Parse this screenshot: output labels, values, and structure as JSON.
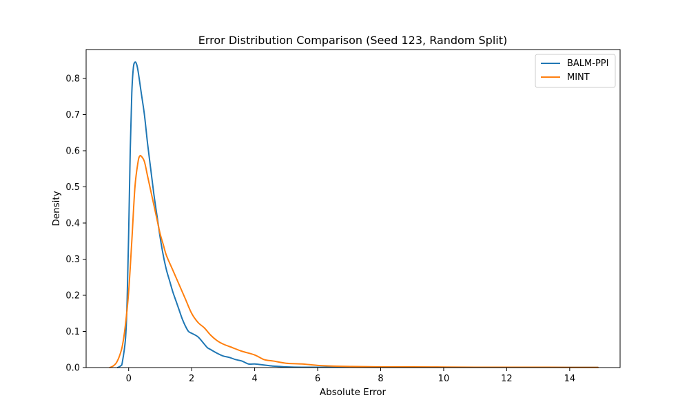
{
  "chart_data": {
    "type": "line",
    "title": "Error Distribution Comparison (Seed 123, Random Split)",
    "xlabel": "Absolute Error",
    "ylabel": "Density",
    "xlim": [
      -1.35,
      15.6
    ],
    "ylim": [
      0,
      0.88
    ],
    "xticks": [
      0,
      2,
      4,
      6,
      8,
      10,
      12,
      14
    ],
    "yticks": [
      0.0,
      0.1,
      0.2,
      0.3,
      0.4,
      0.5,
      0.6,
      0.7,
      0.8
    ],
    "xtick_labels": [
      "0",
      "2",
      "4",
      "6",
      "8",
      "10",
      "12",
      "14"
    ],
    "ytick_labels": [
      "0.0",
      "0.1",
      "0.2",
      "0.3",
      "0.4",
      "0.5",
      "0.6",
      "0.7",
      "0.8"
    ],
    "grid": false,
    "legend_position": "top-right",
    "series": [
      {
        "name": "BALM-PPI",
        "color": "#1f77b4",
        "x": [
          -0.35,
          -0.25,
          -0.2,
          -0.1,
          -0.05,
          0.0,
          0.05,
          0.1,
          0.15,
          0.2,
          0.25,
          0.3,
          0.4,
          0.5,
          0.6,
          0.7,
          0.8,
          0.9,
          1.0,
          1.1,
          1.2,
          1.3,
          1.4,
          1.5,
          1.6,
          1.7,
          1.8,
          1.9,
          2.0,
          2.2,
          2.4,
          2.5,
          2.6,
          2.8,
          3.0,
          3.2,
          3.4,
          3.6,
          3.8,
          4.0,
          4.2,
          4.4,
          4.6,
          4.8,
          5.0,
          5.5,
          6.0,
          7.0,
          8.0,
          9.0,
          10.0,
          11.0,
          12.0,
          13.0,
          14.0,
          14.9
        ],
        "y": [
          0.0,
          0.005,
          0.015,
          0.08,
          0.18,
          0.37,
          0.6,
          0.76,
          0.83,
          0.845,
          0.84,
          0.82,
          0.76,
          0.7,
          0.62,
          0.55,
          0.48,
          0.42,
          0.36,
          0.31,
          0.27,
          0.24,
          0.21,
          0.185,
          0.16,
          0.135,
          0.115,
          0.1,
          0.095,
          0.085,
          0.065,
          0.055,
          0.05,
          0.04,
          0.032,
          0.028,
          0.022,
          0.018,
          0.01,
          0.01,
          0.008,
          0.006,
          0.004,
          0.003,
          0.002,
          0.001,
          0.001,
          0.001,
          0.0005,
          0.0005,
          0.0005,
          0.0005,
          0.0005,
          0.0005,
          0.0005,
          0.0005
        ]
      },
      {
        "name": "MINT",
        "color": "#ff7f0e",
        "x": [
          -0.6,
          -0.5,
          -0.4,
          -0.3,
          -0.2,
          -0.1,
          0.0,
          0.1,
          0.2,
          0.3,
          0.35,
          0.4,
          0.5,
          0.6,
          0.7,
          0.8,
          0.9,
          1.0,
          1.1,
          1.2,
          1.4,
          1.6,
          1.8,
          2.0,
          2.2,
          2.4,
          2.6,
          2.8,
          3.0,
          3.3,
          3.6,
          4.0,
          4.3,
          4.6,
          5.0,
          5.5,
          6.0,
          6.5,
          7.0,
          8.0,
          9.0,
          10.0,
          11.0,
          12.0,
          13.0,
          14.0,
          14.9
        ],
        "y": [
          0.0,
          0.004,
          0.012,
          0.03,
          0.06,
          0.12,
          0.21,
          0.35,
          0.5,
          0.57,
          0.585,
          0.585,
          0.57,
          0.53,
          0.49,
          0.45,
          0.41,
          0.37,
          0.34,
          0.31,
          0.27,
          0.23,
          0.19,
          0.15,
          0.125,
          0.11,
          0.09,
          0.075,
          0.065,
          0.055,
          0.045,
          0.035,
          0.022,
          0.018,
          0.012,
          0.01,
          0.006,
          0.004,
          0.003,
          0.002,
          0.002,
          0.0015,
          0.001,
          0.001,
          0.001,
          0.0005,
          0.0005
        ]
      }
    ]
  }
}
